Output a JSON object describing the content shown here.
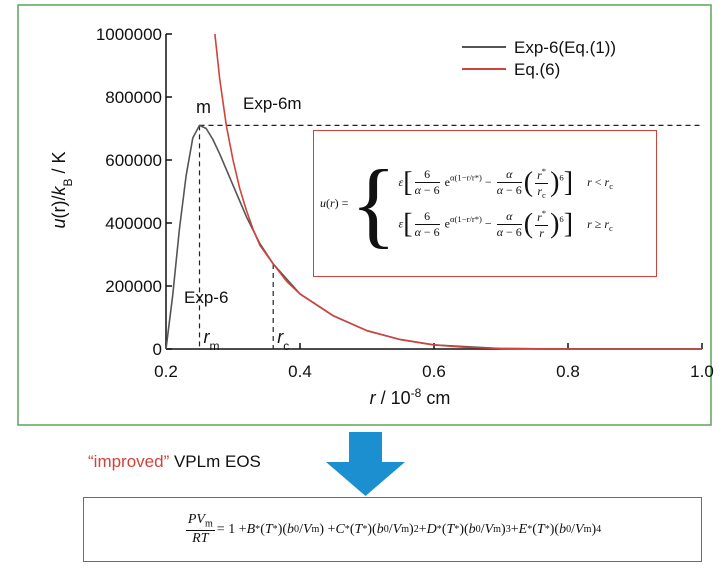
{
  "chart_data": {
    "type": "line",
    "xlim": [
      0.2,
      1.0
    ],
    "ylim": [
      0,
      1000000
    ],
    "xticks": [
      0.2,
      0.4,
      0.6,
      0.8,
      {
        "value": 1,
        "label": "1.0"
      }
    ],
    "yticks": [
      0,
      200000,
      400000,
      600000,
      800000,
      1000000
    ],
    "y_label": [
      {
        "i": "u"
      },
      {
        "t": "(r)/"
      },
      {
        "i": "k"
      },
      {
        "sub": "B"
      },
      {
        "t": " / K"
      }
    ],
    "x_label": [
      {
        "i": "r"
      },
      {
        "t": " / 10"
      },
      {
        "sup": "-8"
      },
      {
        "t": " cm"
      }
    ],
    "legend": "top-right",
    "series": [
      {
        "name": "Exp-6(Eq.(1))",
        "color": "#555555",
        "x": [
          0.2,
          0.21,
          0.22,
          0.23,
          0.24,
          0.25,
          0.26,
          0.27,
          0.28,
          0.3,
          0.32,
          0.34,
          0.36,
          0.4,
          0.45,
          0.5,
          0.55,
          0.6,
          0.7,
          0.8,
          0.9,
          1.0
        ],
        "values": [
          0,
          170000,
          380000,
          550000,
          670000,
          710000,
          700000,
          665000,
          620000,
          520000,
          420000,
          335000,
          270000,
          175000,
          105000,
          58000,
          30000,
          13000,
          1500,
          0,
          0,
          0
        ]
      },
      {
        "name": "Eq.(6)",
        "color": "#d0433c",
        "x": [
          0.273,
          0.28,
          0.29,
          0.3,
          0.31,
          0.32,
          0.33,
          0.34,
          0.36,
          0.38,
          0.4,
          0.45,
          0.5,
          0.55,
          0.6,
          0.65,
          0.7,
          0.8,
          0.9,
          1.0
        ],
        "values": [
          1000000,
          860000,
          710000,
          600000,
          510000,
          440000,
          380000,
          330000,
          270000,
          215000,
          175000,
          105000,
          58000,
          30000,
          13000,
          5000,
          1500,
          0,
          0,
          0
        ]
      }
    ],
    "hline": {
      "y": 710000
    },
    "vlines": [
      {
        "x": 0.25,
        "y": 710000,
        "r": "r",
        "sub": "m"
      },
      {
        "x": 0.36,
        "y": 270000,
        "r": "r",
        "sub": "c"
      }
    ],
    "annotations": {
      "peak": "m",
      "cross": "Exp-6m",
      "curve": "Exp-6"
    }
  },
  "equation_box": {
    "lhs": [
      {
        "i": "u"
      },
      {
        "t": "("
      },
      {
        "i": "r"
      },
      {
        "t": ") ="
      }
    ],
    "brace": "{",
    "cases": [
      {
        "expr": [
          {
            "i": "ε"
          },
          {
            "big": "["
          },
          {
            "num": [
              {
                "t": "6"
              }
            ],
            "den": [
              {
                "i": "α"
              },
              {
                "t": " − 6"
              }
            ]
          },
          {
            "t": " e"
          },
          {
            "sup": "α(1−r/r*)"
          },
          {
            "t": " − "
          },
          {
            "num": [
              {
                "i": "α"
              }
            ],
            "den": [
              {
                "i": "α"
              },
              {
                "t": " − 6"
              }
            ]
          },
          {
            "big": "("
          },
          {
            "num": [
              {
                "i": "r"
              },
              {
                "sup": "*"
              }
            ],
            "den": [
              {
                "i": "r"
              },
              {
                "sub": "c"
              }
            ]
          },
          {
            "big": ")"
          },
          {
            "sup": "6"
          },
          {
            "big": "]"
          }
        ],
        "cond": [
          {
            "i": "r"
          },
          {
            "t": " < "
          },
          {
            "i": "r"
          },
          {
            "sub": "c"
          }
        ]
      },
      {
        "expr": [
          {
            "i": "ε"
          },
          {
            "big": "["
          },
          {
            "num": [
              {
                "t": "6"
              }
            ],
            "den": [
              {
                "i": "α"
              },
              {
                "t": " − 6"
              }
            ]
          },
          {
            "t": " e"
          },
          {
            "sup": "α(1−r/r*)"
          },
          {
            "t": " − "
          },
          {
            "num": [
              {
                "i": "α"
              }
            ],
            "den": [
              {
                "i": "α"
              },
              {
                "t": " − 6"
              }
            ]
          },
          {
            "big": "("
          },
          {
            "num": [
              {
                "i": "r"
              },
              {
                "sup": "*"
              }
            ],
            "den": [
              {
                "i": "r"
              }
            ]
          },
          {
            "big": ")"
          },
          {
            "sup": "6"
          },
          {
            "big": "]"
          }
        ],
        "cond": [
          {
            "i": "r"
          },
          {
            "t": " ≥ "
          },
          {
            "i": "r"
          },
          {
            "sub": "c"
          }
        ]
      }
    ]
  },
  "caption": {
    "highlight": "“improved”",
    "rest": " VPLm EOS"
  },
  "eos": [
    {
      "num": [
        {
          "i": "PV"
        },
        {
          "sub": "m"
        }
      ],
      "den": [
        {
          "i": "RT"
        }
      ]
    },
    {
      "t": " = 1 + "
    },
    {
      "i": "B"
    },
    {
      "sup": "*"
    },
    {
      "t": "("
    },
    {
      "i": "T"
    },
    {
      "sup": "*"
    },
    {
      "t": ")("
    },
    {
      "i": "b"
    },
    {
      "sub": "0"
    },
    {
      "t": "/"
    },
    {
      "i": "V"
    },
    {
      "sub": "m"
    },
    {
      "t": ") + "
    },
    {
      "i": "C"
    },
    {
      "sup": "*"
    },
    {
      "t": "("
    },
    {
      "i": "T"
    },
    {
      "sup": "*"
    },
    {
      "t": ")("
    },
    {
      "i": "b"
    },
    {
      "sub": "0"
    },
    {
      "t": "/"
    },
    {
      "i": "V"
    },
    {
      "sub": "m"
    },
    {
      "t": ")"
    },
    {
      "sup": "2"
    },
    {
      "t": " + "
    },
    {
      "i": "D"
    },
    {
      "sup": "*"
    },
    {
      "t": "("
    },
    {
      "i": "T"
    },
    {
      "sup": "*"
    },
    {
      "t": ")("
    },
    {
      "i": "b"
    },
    {
      "sub": "0"
    },
    {
      "t": "/"
    },
    {
      "i": "V"
    },
    {
      "sub": "m"
    },
    {
      "t": ")"
    },
    {
      "sup": "3"
    },
    {
      "t": " + "
    },
    {
      "i": "E"
    },
    {
      "sup": "*"
    },
    {
      "t": "("
    },
    {
      "i": "T"
    },
    {
      "sup": "*"
    },
    {
      "t": ")("
    },
    {
      "i": "b"
    },
    {
      "sub": "0"
    },
    {
      "t": "/"
    },
    {
      "i": "V"
    },
    {
      "sub": "m"
    },
    {
      "t": ")"
    },
    {
      "sup": "4"
    }
  ]
}
